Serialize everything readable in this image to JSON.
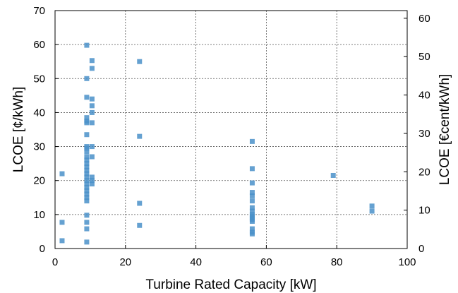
{
  "chart_data": {
    "type": "scatter",
    "title": "",
    "xlabel": "Turbine Rated Capacity [kW]",
    "ylabel": "LCOE [¢/kWh]",
    "y2label": "LCOE [€cent/kWh]",
    "xlim": [
      0,
      100
    ],
    "ylim": [
      0,
      70
    ],
    "y2lim": [
      0,
      62
    ],
    "xticks": [
      "0",
      "20",
      "40",
      "60",
      "80",
      "100"
    ],
    "yticks": [
      "0",
      "10",
      "20",
      "30",
      "40",
      "50",
      "60",
      "70"
    ],
    "y2ticks": [
      "0",
      "10",
      "20",
      "30",
      "40",
      "50",
      "60"
    ],
    "grid": true,
    "marker_color": "#4a90c9",
    "series": [
      {
        "points": [
          [
            2,
            22.0
          ],
          [
            2,
            7.7
          ],
          [
            2,
            2.3
          ],
          [
            9,
            59.8
          ],
          [
            9,
            50.0
          ],
          [
            9,
            44.5
          ],
          [
            9,
            38.5
          ],
          [
            9,
            37.5
          ],
          [
            9,
            37.0
          ],
          [
            9,
            33.5
          ],
          [
            9,
            30.0
          ],
          [
            9,
            29.5
          ],
          [
            9,
            28.5
          ],
          [
            9,
            27.0
          ],
          [
            9,
            26.0
          ],
          [
            9,
            25.0
          ],
          [
            9,
            24.0
          ],
          [
            9,
            23.0
          ],
          [
            9,
            22.0
          ],
          [
            9,
            21.0
          ],
          [
            9,
            20.0
          ],
          [
            9,
            19.0
          ],
          [
            9,
            18.0
          ],
          [
            9,
            17.0
          ],
          [
            9,
            16.0
          ],
          [
            9,
            15.0
          ],
          [
            9,
            14.0
          ],
          [
            9,
            9.8
          ],
          [
            9,
            7.7
          ],
          [
            9,
            5.8
          ],
          [
            9,
            1.9
          ],
          [
            10.5,
            55.3
          ],
          [
            10.5,
            53.0
          ],
          [
            10.5,
            44.0
          ],
          [
            10.5,
            42.0
          ],
          [
            10.5,
            40.0
          ],
          [
            10.5,
            37.0
          ],
          [
            10.5,
            30.0
          ],
          [
            10.5,
            27.0
          ],
          [
            10.5,
            21.0
          ],
          [
            10.5,
            20.0
          ],
          [
            10.5,
            19.0
          ],
          [
            24,
            55.0
          ],
          [
            24,
            33.0
          ],
          [
            24,
            13.3
          ],
          [
            24,
            6.8
          ],
          [
            56,
            31.5
          ],
          [
            56,
            23.5
          ],
          [
            56,
            19.3
          ],
          [
            56,
            16.5
          ],
          [
            56,
            15.5
          ],
          [
            56,
            14.0
          ],
          [
            56,
            12.0
          ],
          [
            56,
            11.0
          ],
          [
            56,
            10.0
          ],
          [
            56,
            9.5
          ],
          [
            56,
            9.0
          ],
          [
            56,
            8.5
          ],
          [
            56,
            8.0
          ],
          [
            56,
            5.8
          ],
          [
            56,
            4.8
          ],
          [
            56,
            4.3
          ],
          [
            79,
            21.5
          ],
          [
            90,
            12.5
          ],
          [
            90,
            11.0
          ]
        ]
      }
    ]
  }
}
